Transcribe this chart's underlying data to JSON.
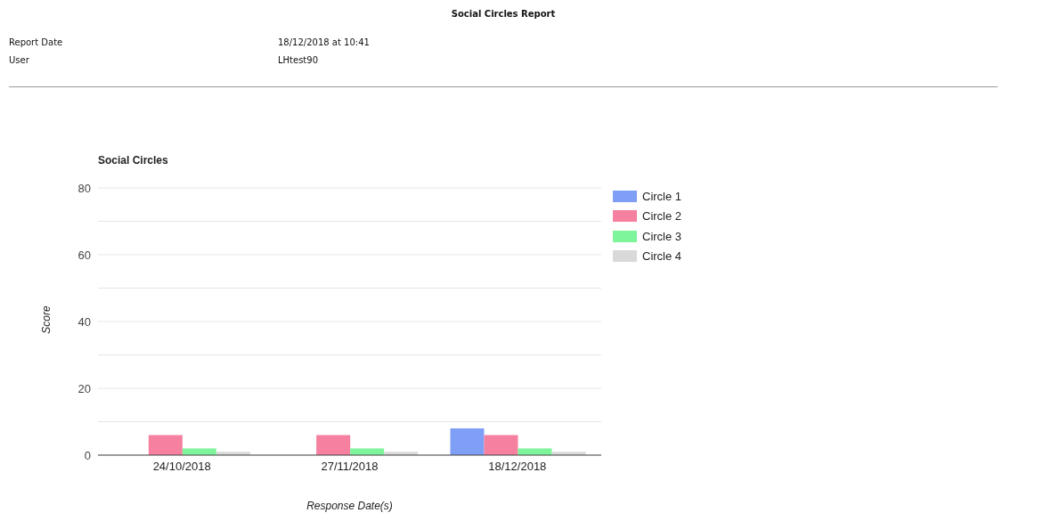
{
  "chart_data": {
    "type": "bar",
    "title": "Social Circles",
    "xlabel": "Response Date(s)",
    "ylabel": "Score",
    "annotations": [
      "Social Circles Report",
      "Report Date",
      "18/12/2018 at 10:41",
      "User",
      "LHtest90"
    ],
    "categories": [
      "24/10/2018",
      "27/11/2018",
      "18/12/2018"
    ],
    "series": [
      {
        "name": "Circle 1",
        "color": "#7f9ef5",
        "values": [
          0,
          0,
          8
        ]
      },
      {
        "name": "Circle 2",
        "color": "#f6809f",
        "values": [
          6,
          6,
          6
        ]
      },
      {
        "name": "Circle 3",
        "color": "#7ff59b",
        "values": [
          2,
          2,
          2
        ]
      },
      {
        "name": "Circle 4",
        "color": "#d9d9d9",
        "values": [
          1,
          1,
          1
        ]
      }
    ],
    "ylim": [
      0,
      80
    ],
    "yticks": [
      0,
      {
        "value": 10,
        "label": null
      },
      20,
      {
        "value": 30,
        "label": null
      },
      40,
      {
        "value": 50,
        "label": null
      },
      60,
      {
        "value": 70,
        "label": null
      },
      80
    ],
    "grid": "y",
    "legend": "top right"
  }
}
